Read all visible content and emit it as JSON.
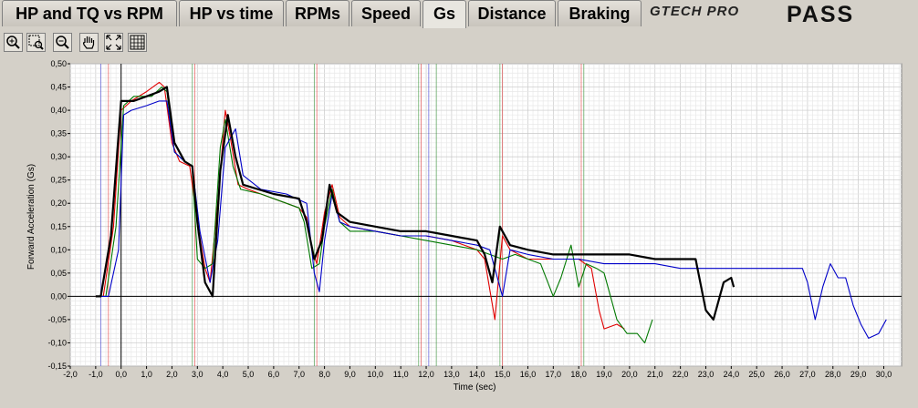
{
  "tabs": [
    {
      "label": "HP and TQ vs RPM",
      "active": false
    },
    {
      "label": "HP vs time",
      "active": false
    },
    {
      "label": "RPMs",
      "active": false
    },
    {
      "label": "Speed",
      "active": false
    },
    {
      "label": "Gs",
      "active": true
    },
    {
      "label": "Distance",
      "active": false
    },
    {
      "label": "Braking",
      "active": false
    }
  ],
  "logo": {
    "brand": "GTECH PRO",
    "product": "PASS"
  },
  "toolbar": {
    "icons": [
      "zoom-in-icon",
      "zoom-box-icon",
      "zoom-out-icon",
      "pan-hand-icon",
      "zoom-fit-icon",
      "grid-icon"
    ]
  },
  "colors": {
    "accent_black": "#000000",
    "run_red": "#e00000",
    "run_green": "#007800",
    "run_blue": "#0000c8",
    "grid_minor": "#e8e8e8",
    "grid_major": "#c8c8c8"
  },
  "chart_data": {
    "type": "line",
    "xlabel": "Time (sec)",
    "ylabel": "Forward Acceleration (Gs)",
    "xlim": [
      -2.0,
      30.7
    ],
    "ylim": [
      -0.15,
      0.5
    ],
    "xticks": [
      "-2,0",
      "-1,0",
      "0,0",
      "1,0",
      "2,0",
      "3,0",
      "4,0",
      "5,0",
      "6,0",
      "7,0",
      "8,0",
      "9,0",
      "10,0",
      "11,0",
      "12,0",
      "13,0",
      "14,0",
      "15,0",
      "16,0",
      "17,0",
      "18,0",
      "19,0",
      "20,0",
      "21,0",
      "22,0",
      "23,0",
      "24,0",
      "25,0",
      "26,0",
      "27,0",
      "28,0",
      "29,0",
      "30,0"
    ],
    "yticks": [
      "-0,15",
      "-0,10",
      "-0,05",
      "0,00",
      "0,05",
      "0,10",
      "0,15",
      "0,20",
      "0,25",
      "0,30",
      "0,35",
      "0,40",
      "0,45",
      "0,50"
    ],
    "grid": true,
    "markers": [
      {
        "x": -0.8,
        "color": "#0000c8"
      },
      {
        "x": -0.5,
        "color": "#e00000"
      },
      {
        "x": 2.8,
        "color": "#007800"
      },
      {
        "x": 2.9,
        "color": "#e00000"
      },
      {
        "x": 7.6,
        "color": "#007800"
      },
      {
        "x": 7.7,
        "color": "#e00000"
      },
      {
        "x": 11.7,
        "color": "#007800"
      },
      {
        "x": 11.8,
        "color": "#e00000"
      },
      {
        "x": 12.1,
        "color": "#0000c8"
      },
      {
        "x": 12.4,
        "color": "#007800"
      },
      {
        "x": 14.9,
        "color": "#007800"
      },
      {
        "x": 15.0,
        "color": "#e00000"
      },
      {
        "x": 18.1,
        "color": "#e00000"
      },
      {
        "x": 18.2,
        "color": "#007800"
      }
    ],
    "series": [
      {
        "color": "#e00000",
        "points": [
          [
            -1.0,
            0.0
          ],
          [
            -0.7,
            0.0
          ],
          [
            -0.3,
            0.15
          ],
          [
            0.0,
            0.4
          ],
          [
            0.4,
            0.42
          ],
          [
            1.0,
            0.44
          ],
          [
            1.5,
            0.46
          ],
          [
            1.7,
            0.45
          ],
          [
            2.0,
            0.33
          ],
          [
            2.3,
            0.29
          ],
          [
            2.7,
            0.28
          ],
          [
            3.0,
            0.16
          ],
          [
            3.3,
            0.06
          ],
          [
            3.5,
            0.03
          ],
          [
            3.8,
            0.2
          ],
          [
            4.1,
            0.4
          ],
          [
            4.3,
            0.34
          ],
          [
            4.6,
            0.24
          ],
          [
            5.0,
            0.23
          ],
          [
            6.0,
            0.21
          ],
          [
            7.0,
            0.19
          ],
          [
            7.3,
            0.17
          ],
          [
            7.5,
            0.1
          ],
          [
            7.7,
            0.07
          ],
          [
            8.0,
            0.18
          ],
          [
            8.3,
            0.24
          ],
          [
            8.6,
            0.17
          ],
          [
            9.0,
            0.15
          ],
          [
            10.0,
            0.14
          ],
          [
            11.0,
            0.13
          ],
          [
            12.0,
            0.13
          ],
          [
            13.0,
            0.12
          ],
          [
            14.0,
            0.1
          ],
          [
            14.3,
            0.08
          ],
          [
            14.7,
            -0.05
          ],
          [
            15.0,
            0.13
          ],
          [
            15.3,
            0.1
          ],
          [
            16.0,
            0.08
          ],
          [
            17.0,
            0.08
          ],
          [
            18.0,
            0.08
          ],
          [
            18.5,
            0.06
          ],
          [
            18.8,
            -0.03
          ],
          [
            19.0,
            -0.07
          ],
          [
            19.5,
            -0.06
          ],
          [
            19.8,
            -0.07
          ]
        ]
      },
      {
        "color": "#007800",
        "points": [
          [
            -0.9,
            0.0
          ],
          [
            -0.6,
            0.0
          ],
          [
            -0.2,
            0.15
          ],
          [
            0.1,
            0.41
          ],
          [
            0.5,
            0.43
          ],
          [
            1.2,
            0.43
          ],
          [
            1.6,
            0.45
          ],
          [
            1.8,
            0.44
          ],
          [
            2.1,
            0.31
          ],
          [
            2.5,
            0.29
          ],
          [
            2.8,
            0.28
          ],
          [
            3.0,
            0.08
          ],
          [
            3.3,
            0.06
          ],
          [
            3.6,
            0.07
          ],
          [
            3.9,
            0.32
          ],
          [
            4.1,
            0.38
          ],
          [
            4.4,
            0.28
          ],
          [
            4.7,
            0.23
          ],
          [
            5.5,
            0.22
          ],
          [
            6.5,
            0.2
          ],
          [
            7.0,
            0.19
          ],
          [
            7.2,
            0.16
          ],
          [
            7.5,
            0.06
          ],
          [
            7.8,
            0.07
          ],
          [
            8.0,
            0.15
          ],
          [
            8.3,
            0.23
          ],
          [
            8.6,
            0.16
          ],
          [
            9.0,
            0.14
          ],
          [
            10.0,
            0.14
          ],
          [
            11.0,
            0.13
          ],
          [
            12.0,
            0.12
          ],
          [
            13.0,
            0.11
          ],
          [
            14.0,
            0.1
          ],
          [
            14.5,
            0.09
          ],
          [
            15.0,
            0.08
          ],
          [
            15.5,
            0.09
          ],
          [
            16.0,
            0.08
          ],
          [
            16.5,
            0.07
          ],
          [
            17.0,
            0.0
          ],
          [
            17.3,
            0.04
          ],
          [
            17.7,
            0.11
          ],
          [
            18.0,
            0.02
          ],
          [
            18.3,
            0.07
          ],
          [
            18.7,
            0.06
          ],
          [
            19.0,
            0.05
          ],
          [
            19.5,
            -0.05
          ],
          [
            19.9,
            -0.08
          ],
          [
            20.3,
            -0.08
          ],
          [
            20.6,
            -0.1
          ],
          [
            20.9,
            -0.05
          ]
        ]
      },
      {
        "color": "#0000c8",
        "points": [
          [
            -0.8,
            0.0
          ],
          [
            -0.5,
            0.0
          ],
          [
            -0.1,
            0.1
          ],
          [
            0.1,
            0.39
          ],
          [
            0.4,
            0.4
          ],
          [
            1.0,
            0.41
          ],
          [
            1.5,
            0.42
          ],
          [
            1.8,
            0.42
          ],
          [
            2.1,
            0.31
          ],
          [
            2.5,
            0.29
          ],
          [
            2.8,
            0.28
          ],
          [
            3.1,
            0.14
          ],
          [
            3.5,
            0.03
          ],
          [
            3.8,
            0.12
          ],
          [
            4.1,
            0.32
          ],
          [
            4.5,
            0.36
          ],
          [
            4.8,
            0.26
          ],
          [
            5.5,
            0.23
          ],
          [
            6.5,
            0.22
          ],
          [
            7.3,
            0.2
          ],
          [
            7.6,
            0.05
          ],
          [
            7.8,
            0.01
          ],
          [
            8.0,
            0.12
          ],
          [
            8.3,
            0.22
          ],
          [
            8.6,
            0.16
          ],
          [
            9.0,
            0.15
          ],
          [
            10.0,
            0.14
          ],
          [
            11.0,
            0.13
          ],
          [
            12.0,
            0.13
          ],
          [
            13.0,
            0.12
          ],
          [
            14.0,
            0.11
          ],
          [
            14.5,
            0.1
          ],
          [
            15.0,
            0.0
          ],
          [
            15.3,
            0.1
          ],
          [
            16.0,
            0.09
          ],
          [
            17.0,
            0.08
          ],
          [
            18.0,
            0.08
          ],
          [
            19.0,
            0.07
          ],
          [
            20.0,
            0.07
          ],
          [
            21.0,
            0.07
          ],
          [
            22.0,
            0.06
          ],
          [
            23.0,
            0.06
          ],
          [
            24.0,
            0.06
          ],
          [
            25.0,
            0.06
          ],
          [
            26.0,
            0.06
          ],
          [
            26.8,
            0.06
          ],
          [
            27.0,
            0.03
          ],
          [
            27.3,
            -0.05
          ],
          [
            27.6,
            0.02
          ],
          [
            27.9,
            0.07
          ],
          [
            28.2,
            0.04
          ],
          [
            28.5,
            0.04
          ],
          [
            28.8,
            -0.02
          ],
          [
            29.1,
            -0.06
          ],
          [
            29.4,
            -0.09
          ],
          [
            29.8,
            -0.08
          ],
          [
            30.1,
            -0.05
          ]
        ]
      },
      {
        "color": "#000000",
        "points": [
          [
            -1.0,
            0.0
          ],
          [
            -0.8,
            0.0
          ],
          [
            -0.4,
            0.13
          ],
          [
            0.0,
            0.42
          ],
          [
            0.5,
            0.42
          ],
          [
            1.0,
            0.43
          ],
          [
            1.5,
            0.44
          ],
          [
            1.8,
            0.45
          ],
          [
            2.1,
            0.33
          ],
          [
            2.5,
            0.29
          ],
          [
            2.8,
            0.28
          ],
          [
            3.0,
            0.16
          ],
          [
            3.3,
            0.03
          ],
          [
            3.6,
            0.0
          ],
          [
            3.9,
            0.27
          ],
          [
            4.2,
            0.39
          ],
          [
            4.5,
            0.3
          ],
          [
            4.8,
            0.24
          ],
          [
            6.0,
            0.22
          ],
          [
            7.0,
            0.21
          ],
          [
            7.3,
            0.16
          ],
          [
            7.6,
            0.08
          ],
          [
            7.9,
            0.12
          ],
          [
            8.2,
            0.24
          ],
          [
            8.5,
            0.18
          ],
          [
            9.0,
            0.16
          ],
          [
            10.0,
            0.15
          ],
          [
            11.0,
            0.14
          ],
          [
            12.0,
            0.14
          ],
          [
            13.0,
            0.13
          ],
          [
            14.0,
            0.12
          ],
          [
            14.3,
            0.09
          ],
          [
            14.6,
            0.03
          ],
          [
            14.9,
            0.15
          ],
          [
            15.3,
            0.11
          ],
          [
            16.0,
            0.1
          ],
          [
            17.0,
            0.09
          ],
          [
            18.0,
            0.09
          ],
          [
            19.0,
            0.09
          ],
          [
            20.0,
            0.09
          ],
          [
            21.0,
            0.08
          ],
          [
            22.0,
            0.08
          ],
          [
            22.6,
            0.08
          ],
          [
            23.0,
            -0.03
          ],
          [
            23.3,
            -0.05
          ],
          [
            23.7,
            0.03
          ],
          [
            24.0,
            0.04
          ],
          [
            24.1,
            0.02
          ]
        ]
      }
    ]
  }
}
